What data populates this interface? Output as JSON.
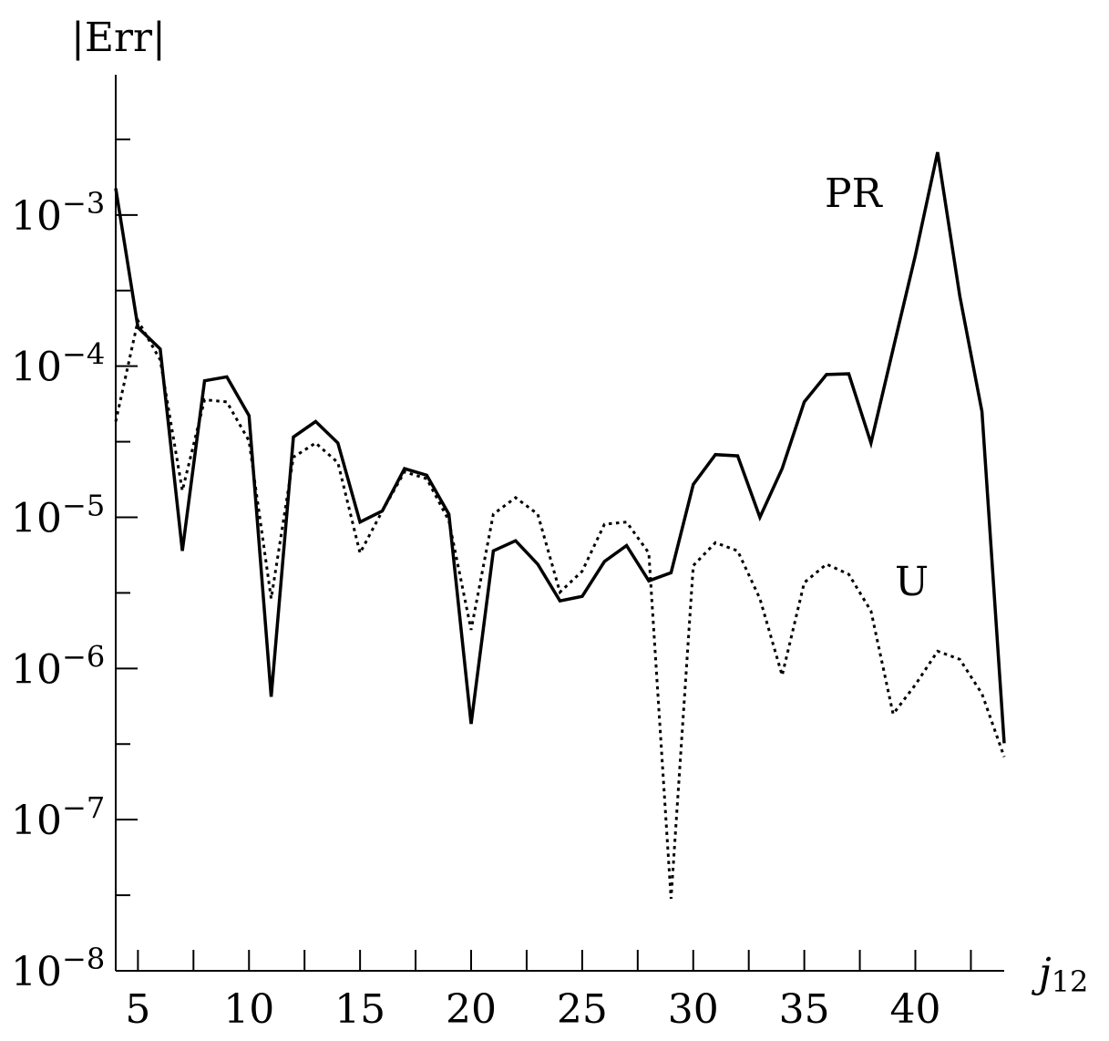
{
  "chart_data": {
    "type": "line",
    "ylabel": "|Err|",
    "xlabel_main": "j",
    "xlabel_sub": "12",
    "x_scale": "linear",
    "y_scale": "log",
    "xlim": [
      4,
      44
    ],
    "ylim": [
      1e-08,
      0.01
    ],
    "x_ticks_labeled": [
      "5",
      "10",
      "15",
      "20",
      "25",
      "30",
      "35",
      "40"
    ],
    "y_ticks_labeled": [
      {
        "base": "10",
        "exp": "−3"
      },
      {
        "base": "10",
        "exp": "−4"
      },
      {
        "base": "10",
        "exp": "−5"
      },
      {
        "base": "10",
        "exp": "−6"
      },
      {
        "base": "10",
        "exp": "−7"
      },
      {
        "base": "10",
        "exp": "−8"
      }
    ],
    "grid": false,
    "series": [
      {
        "name": "PR",
        "style": "solid",
        "x": [
          4,
          5,
          6,
          7,
          8,
          9,
          10,
          11,
          12,
          13,
          14,
          15,
          16,
          17,
          18,
          19,
          20,
          21,
          22,
          23,
          24,
          25,
          26,
          27,
          28,
          29,
          30,
          31,
          32,
          33,
          34,
          35,
          36,
          37,
          38,
          39,
          40,
          41,
          42,
          43,
          44
        ],
        "values": [
          0.0015,
          0.00018,
          0.00013,
          6e-06,
          8e-05,
          8.5e-05,
          4.7e-05,
          6.5e-07,
          3.4e-05,
          4.3e-05,
          3.1e-05,
          9.3e-06,
          1.1e-05,
          2.1e-05,
          1.9e-05,
          1.05e-05,
          4.3e-07,
          6e-06,
          7e-06,
          4.9e-06,
          2.8e-06,
          3e-06,
          5.1e-06,
          6.5e-06,
          3.8e-06,
          4.3e-06,
          1.65e-05,
          2.6e-05,
          2.55e-05,
          1e-05,
          2.1e-05,
          5.8e-05,
          8.8e-05,
          8.9e-05,
          3.1e-05,
          0.00013,
          0.00054,
          0.0026,
          0.00029,
          5e-05,
          3.2e-07
        ]
      },
      {
        "name": "U",
        "style": "dotted",
        "x": [
          4,
          5,
          6,
          7,
          8,
          9,
          10,
          11,
          12,
          13,
          14,
          15,
          16,
          17,
          18,
          19,
          20,
          21,
          22,
          23,
          24,
          25,
          26,
          27,
          28,
          29,
          30,
          31,
          32,
          33,
          34,
          35,
          36,
          37,
          38,
          39,
          40,
          41,
          42,
          43,
          44
        ],
        "values": [
          4.3e-05,
          0.0002,
          0.00011,
          1.5e-05,
          6e-05,
          5.8e-05,
          3.2e-05,
          2.9e-06,
          2.5e-05,
          3.1e-05,
          2.3e-05,
          5.8e-06,
          1.1e-05,
          2e-05,
          1.8e-05,
          9.5e-06,
          1.8e-06,
          1.05e-05,
          1.35e-05,
          1.05e-05,
          3.2e-06,
          4.4e-06,
          9e-06,
          9.3e-06,
          5.8e-06,
          3e-08,
          4.8e-06,
          6.8e-06,
          6e-06,
          2.9e-06,
          9e-07,
          3.7e-06,
          4.9e-06,
          4.2e-06,
          2.4e-06,
          5e-07,
          7.8e-07,
          1.3e-06,
          1.15e-06,
          6.8e-07,
          2.6e-07
        ]
      }
    ]
  }
}
